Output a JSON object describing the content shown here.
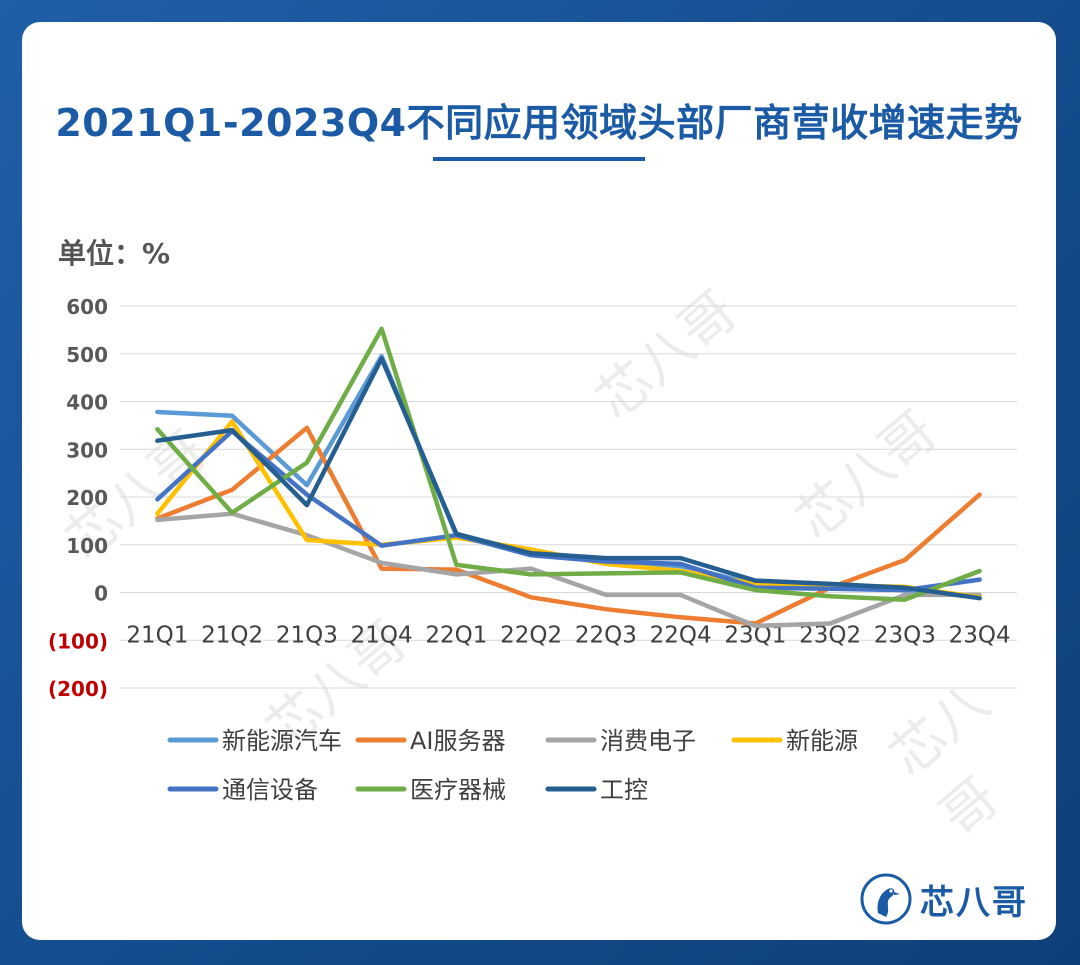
{
  "header": {
    "title": "2021Q1-2023Q4不同应用领域头部厂商营收增速走势",
    "unit_label": "单位：%"
  },
  "branding": {
    "logo_text": "芯八哥",
    "watermark_text": "芯八哥",
    "accent": "#1b5aa5"
  },
  "chart_data": {
    "type": "line",
    "title": "2021Q1-2023Q4不同应用领域头部厂商营收增速走势",
    "ylabel": "单位：%",
    "categories": [
      "21Q1",
      "21Q2",
      "21Q3",
      "21Q4",
      "22Q1",
      "22Q2",
      "22Q3",
      "22Q4",
      "23Q1",
      "23Q2",
      "23Q3",
      "23Q4"
    ],
    "ylim": [
      -200,
      600
    ],
    "yticks": [
      600,
      500,
      400,
      300,
      200,
      100,
      0,
      -100,
      -200
    ],
    "ytick_labels": [
      "600",
      "500",
      "400",
      "300",
      "200",
      "100",
      "0",
      "(100)",
      "(200)"
    ],
    "grid": true,
    "legend": "bottom",
    "series": [
      {
        "name": "新能源汽车",
        "color": "#5b9bd5",
        "values": [
          378,
          370,
          225,
          495,
          120,
          85,
          68,
          55,
          18,
          12,
          5,
          -10
        ]
      },
      {
        "name": "AI服务器",
        "color": "#ed7d31",
        "values": [
          155,
          215,
          345,
          50,
          48,
          -10,
          -35,
          -52,
          -65,
          10,
          68,
          205
        ]
      },
      {
        "name": "消费电子",
        "color": "#a5a5a5",
        "values": [
          152,
          165,
          120,
          62,
          38,
          50,
          -5,
          -5,
          -70,
          -65,
          -5,
          -5
        ]
      },
      {
        "name": "新能源",
        "color": "#ffc000",
        "values": [
          165,
          358,
          110,
          100,
          115,
          90,
          60,
          45,
          18,
          15,
          12,
          -10
        ]
      },
      {
        "name": "通信设备",
        "color": "#4472c4",
        "values": [
          195,
          338,
          205,
          98,
          120,
          78,
          65,
          60,
          10,
          8,
          5,
          27
        ]
      },
      {
        "name": "医疗器械",
        "color": "#70ad47",
        "values": [
          342,
          167,
          272,
          552,
          58,
          38,
          40,
          42,
          5,
          -8,
          -15,
          45
        ]
      },
      {
        "name": "工控",
        "color": "#255e91",
        "values": [
          318,
          340,
          183,
          490,
          123,
          82,
          72,
          72,
          25,
          18,
          10,
          -12
        ]
      }
    ]
  }
}
